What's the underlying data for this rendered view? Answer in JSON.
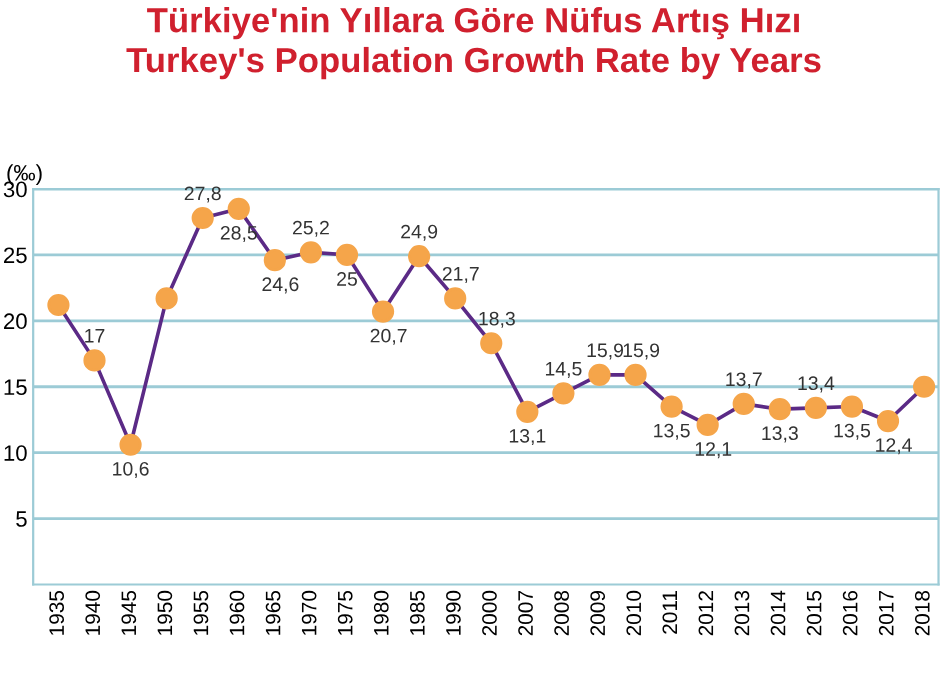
{
  "chart_data": {
    "type": "line",
    "title": "Türkiye'nin Yıllara Göre Nüfus Artış Hızı\nTurkey's Population Growth Rate by Years",
    "ylabel": "(‰)",
    "categories": [
      "1935",
      "1940",
      "1945",
      "1950",
      "1955",
      "1960",
      "1965",
      "1970",
      "1975",
      "1980",
      "1985",
      "1990",
      "2000",
      "2007",
      "2008",
      "2009",
      "2010",
      "2011",
      "2012",
      "2013",
      "2014",
      "2015",
      "2016",
      "2017",
      "2018"
    ],
    "series": [
      {
        "color": "#5b2a86",
        "values": [
          21.2,
          17,
          10.6,
          21.7,
          27.8,
          28.5,
          24.6,
          25.2,
          25,
          20.7,
          24.9,
          21.7,
          18.3,
          13.1,
          14.5,
          15.9,
          15.9,
          13.5,
          12.1,
          13.7,
          13.3,
          13.4,
          13.5,
          12.4,
          15
        ],
        "value_labels": [
          null,
          "17",
          "10,6",
          null,
          "27,8",
          "28,5",
          "24,6",
          "25,2",
          "25",
          "20,7",
          "24,9",
          "21,7",
          "18,3",
          "13,1",
          "14,5",
          "15,9",
          "15,9",
          "13,5",
          "12,1",
          "13,7",
          "13,3",
          "13,4",
          "13,5",
          "12,4",
          null
        ]
      }
    ],
    "marker": "circle",
    "ylim": [
      0,
      30
    ],
    "yticks": [
      5,
      10,
      15,
      20,
      25,
      30
    ],
    "grid": "y"
  }
}
